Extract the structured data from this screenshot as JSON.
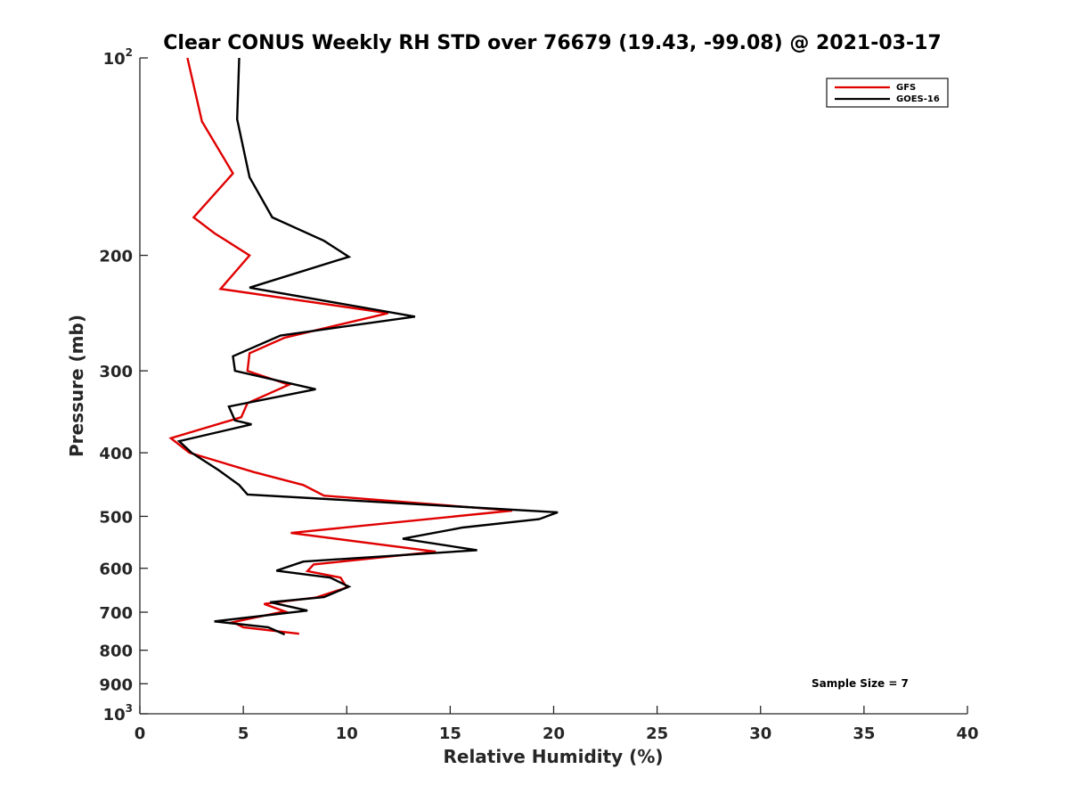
{
  "chart_data": {
    "type": "line",
    "title": "Clear CONUS Weekly RH STD over 76679 (19.43, -99.08) @ 2021-03-17",
    "xlabel": "Relative Humidity (%)",
    "ylabel": "Pressure (mb)",
    "xlim": [
      0,
      40
    ],
    "ylim": [
      100,
      1000
    ],
    "y_scale": "log",
    "y_reversed": true,
    "grid": false,
    "legend_position": "top-right",
    "annotation": "Sample Size = 7",
    "x_ticks": [
      "0",
      "5",
      "10",
      "15",
      "20",
      "25",
      "30",
      "35",
      "40"
    ],
    "y_ticks": [
      {
        "value": 100,
        "base": "10",
        "exp": "2"
      },
      {
        "value": 200,
        "label": "200"
      },
      {
        "value": 300,
        "label": "300"
      },
      {
        "value": 400,
        "label": "400"
      },
      {
        "value": 500,
        "label": "500"
      },
      {
        "value": 600,
        "label": "600"
      },
      {
        "value": 700,
        "label": "700"
      },
      {
        "value": 800,
        "label": "800"
      },
      {
        "value": 900,
        "label": "900"
      },
      {
        "value": 1000,
        "base": "10",
        "exp": "3"
      }
    ],
    "series": [
      {
        "name": "GFS",
        "color": "#e00000",
        "points": [
          [
            2.3,
            100
          ],
          [
            3.0,
            125
          ],
          [
            4.5,
            150
          ],
          [
            2.6,
            175
          ],
          [
            3.6,
            185
          ],
          [
            5.3,
            200
          ],
          [
            3.9,
            225
          ],
          [
            12.0,
            245
          ],
          [
            7.0,
            267
          ],
          [
            5.3,
            282
          ],
          [
            5.2,
            300
          ],
          [
            7.2,
            315
          ],
          [
            5.2,
            336
          ],
          [
            4.9,
            353
          ],
          [
            1.5,
            380
          ],
          [
            2.4,
            400
          ],
          [
            5.5,
            428
          ],
          [
            7.9,
            448
          ],
          [
            8.9,
            465
          ],
          [
            18.0,
            490
          ],
          [
            7.3,
            530
          ],
          [
            14.3,
            566
          ],
          [
            8.4,
            592
          ],
          [
            8.1,
            606
          ],
          [
            9.7,
            620
          ],
          [
            10.0,
            642
          ],
          [
            8.5,
            665
          ],
          [
            6.0,
            680
          ],
          [
            7.0,
            698
          ],
          [
            4.5,
            725
          ],
          [
            5.0,
            738
          ],
          [
            7.7,
            755
          ]
        ]
      },
      {
        "name": "GOES-16",
        "color": "#000000",
        "points": [
          [
            4.8,
            100
          ],
          [
            4.7,
            124
          ],
          [
            5.3,
            152
          ],
          [
            6.4,
            175
          ],
          [
            8.9,
            190
          ],
          [
            10.1,
            201
          ],
          [
            5.3,
            224
          ],
          [
            13.3,
            248
          ],
          [
            6.8,
            265
          ],
          [
            4.5,
            285
          ],
          [
            4.6,
            300
          ],
          [
            8.5,
            320
          ],
          [
            4.3,
            340
          ],
          [
            4.6,
            357
          ],
          [
            5.4,
            362
          ],
          [
            1.9,
            384
          ],
          [
            2.5,
            400
          ],
          [
            3.8,
            425
          ],
          [
            4.8,
            448
          ],
          [
            5.2,
            463
          ],
          [
            20.2,
            493
          ],
          [
            19.3,
            505
          ],
          [
            15.6,
            520
          ],
          [
            12.7,
            541
          ],
          [
            16.3,
            563
          ],
          [
            7.9,
            586
          ],
          [
            6.6,
            605
          ],
          [
            9.2,
            620
          ],
          [
            10.1,
            640
          ],
          [
            8.9,
            664
          ],
          [
            6.3,
            676
          ],
          [
            8.1,
            696
          ],
          [
            3.6,
            723
          ],
          [
            6.2,
            738
          ],
          [
            7.0,
            757
          ]
        ]
      }
    ]
  }
}
